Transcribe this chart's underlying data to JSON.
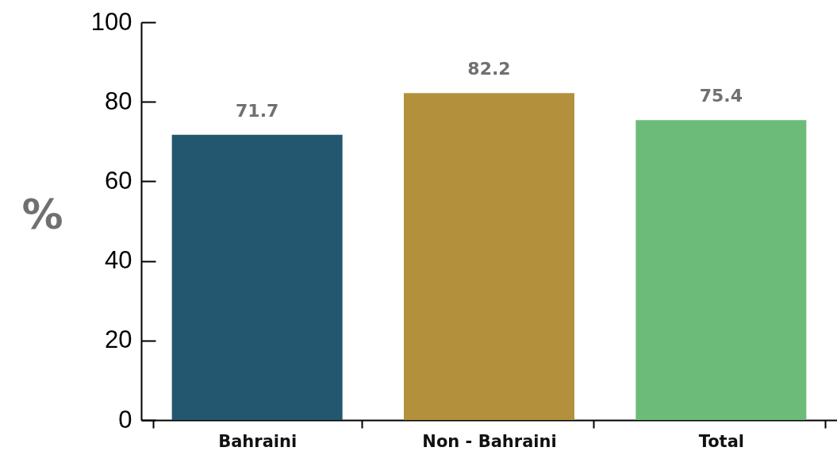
{
  "chart_data": {
    "type": "bar",
    "ylabel": "%",
    "categories": [
      "Bahraini",
      "Non - Bahraini",
      "Total"
    ],
    "values": [
      71.7,
      82.2,
      75.4
    ],
    "colors": [
      "#23566f",
      "#b3903b",
      "#6dbb78"
    ],
    "ylim": [
      0,
      100
    ],
    "yticks": [
      0,
      20,
      40,
      60,
      80,
      100
    ],
    "data_labels": true,
    "grid": false,
    "legend": false
  }
}
